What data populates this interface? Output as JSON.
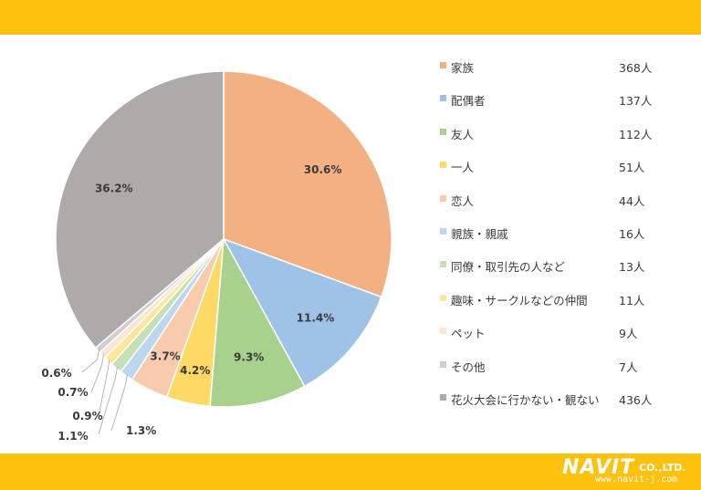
{
  "chart_data": {
    "type": "pie",
    "slices": [
      {
        "label": "家族",
        "count": "368人",
        "percent": 30.6,
        "percent_label": "30.6%",
        "color": "#f3b183"
      },
      {
        "label": "配偶者",
        "count": "137人",
        "percent": 11.4,
        "percent_label": "11.4%",
        "color": "#9fc3e6"
      },
      {
        "label": "友人",
        "count": "112人",
        "percent": 9.3,
        "percent_label": "9.3%",
        "color": "#a8d18d"
      },
      {
        "label": "一人",
        "count": "51人",
        "percent": 4.2,
        "percent_label": "4.2%",
        "color": "#ffd966"
      },
      {
        "label": "恋人",
        "count": "44人",
        "percent": 3.7,
        "percent_label": "3.7%",
        "color": "#f8cbad"
      },
      {
        "label": "親族・親戚",
        "count": "16人",
        "percent": 1.3,
        "percent_label": "1.3%",
        "color": "#bdd7ee"
      },
      {
        "label": "同僚・取引先の人など",
        "count": "13人",
        "percent": 1.1,
        "percent_label": "1.1%",
        "color": "#c5e0b4"
      },
      {
        "label": "趣味・サークルなどの仲間",
        "count": "11人",
        "percent": 0.9,
        "percent_label": "0.9%",
        "color": "#ffe699"
      },
      {
        "label": "ペット",
        "count": "9人",
        "percent": 0.7,
        "percent_label": "0.7%",
        "color": "#fbe5d6"
      },
      {
        "label": "その他",
        "count": "7人",
        "percent": 0.6,
        "percent_label": "0.6%",
        "color": "#d0cece"
      },
      {
        "label": "花火大会に行かない・観ない",
        "count": "436人",
        "percent": 36.2,
        "percent_label": "36.2%",
        "color": "#aeaaaa"
      }
    ]
  },
  "logo": {
    "name": "NAVIT",
    "suffix": "CO.,LTD.",
    "url": "www.navit-j.com"
  },
  "colors": {
    "bar": "#fec10e"
  }
}
